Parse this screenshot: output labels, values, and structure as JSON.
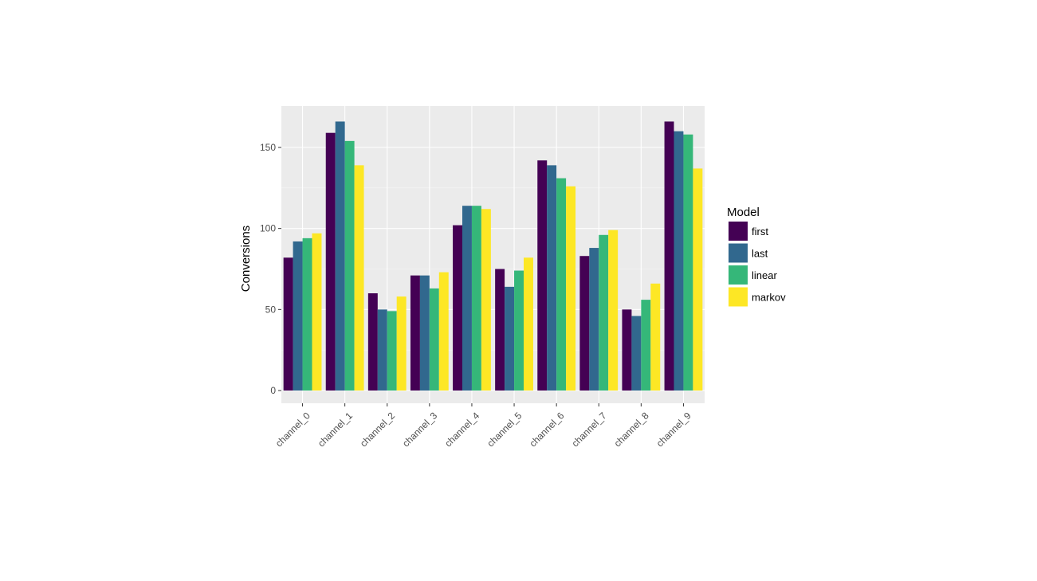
{
  "chart_data": {
    "type": "bar",
    "title": "",
    "xlabel": "",
    "ylabel": "Conversions",
    "ylim": [
      0,
      170
    ],
    "yticks": [
      0,
      50,
      100,
      150
    ],
    "grid": true,
    "legend_position": "right",
    "legend_title": "Model",
    "categories": [
      "channel_0",
      "channel_1",
      "channel_2",
      "channel_3",
      "channel_4",
      "channel_5",
      "channel_6",
      "channel_7",
      "channel_8",
      "channel_9"
    ],
    "series": [
      {
        "name": "first",
        "color": "#440154",
        "values": [
          82,
          159,
          60,
          71,
          102,
          75,
          142,
          83,
          50,
          166
        ]
      },
      {
        "name": "last",
        "color": "#31688e",
        "values": [
          92,
          166,
          50,
          71,
          114,
          64,
          139,
          88,
          46,
          160
        ]
      },
      {
        "name": "linear",
        "color": "#35b779",
        "values": [
          94,
          154,
          49,
          63,
          114,
          74,
          131,
          96,
          56,
          158
        ]
      },
      {
        "name": "markov",
        "color": "#fde725",
        "values": [
          97,
          139,
          58,
          73,
          112,
          82,
          126,
          99,
          66,
          137
        ]
      }
    ]
  },
  "colors": {
    "panel_background": "#ebebeb",
    "grid_major": "#ffffff"
  }
}
